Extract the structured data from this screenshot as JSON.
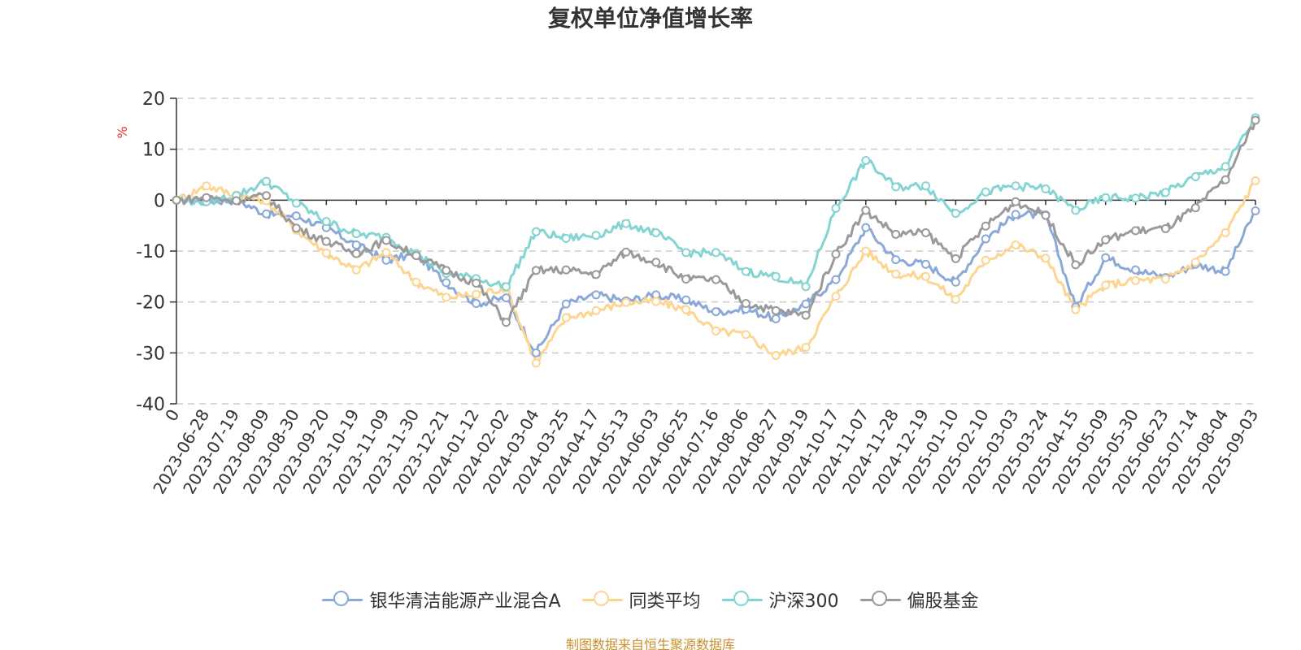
{
  "chart_data": {
    "type": "line",
    "title": "复权单位净值增长率",
    "ylabel": "%",
    "ylim": [
      -40,
      20
    ],
    "yticks": [
      20,
      10,
      0,
      -10,
      -20,
      -30,
      -40
    ],
    "x_tick_labels": [
      "0",
      "2023-06-28",
      "2023-07-19",
      "2023-08-09",
      "2023-08-30",
      "2023-09-20",
      "2023-10-19",
      "2023-11-09",
      "2023-11-30",
      "2023-12-21",
      "2024-01-12",
      "2024-02-02",
      "2024-03-04",
      "2024-03-25",
      "2024-04-17",
      "2024-05-13",
      "2024-06-03",
      "2024-06-25",
      "2024-07-16",
      "2024-08-06",
      "2024-08-27",
      "2024-09-19",
      "2024-10-17",
      "2024-11-07",
      "2024-11-28",
      "2024-12-19",
      "2025-01-10",
      "2025-02-10",
      "2025-03-03",
      "2025-03-24",
      "2025-04-15",
      "2025-05-09",
      "2025-05-30",
      "2025-06-23",
      "2025-07-14",
      "2025-08-04",
      "2025-09-03"
    ],
    "grid": "dashed horizontal",
    "legend_position": "bottom-center",
    "series": [
      {
        "name": "银华清洁能源产业混合A",
        "color": "#8aa8d8",
        "values": [
          0,
          -0.3,
          0,
          -2.7,
          -3.1,
          -5.4,
          -8.8,
          -11.8,
          -10.6,
          -16.2,
          -20.3,
          -19.2,
          -30.0,
          -20.4,
          -18.6,
          -19.8,
          -18.6,
          -19.6,
          -21.9,
          -21.4,
          -23.3,
          -20.4,
          -15.6,
          -5.4,
          -11.7,
          -12.6,
          -16.1,
          -7.6,
          -2.8,
          -2.9,
          -21.0,
          -11.3,
          -13.7,
          -15.2,
          -12.6,
          -14.0,
          -2.1
        ]
      },
      {
        "name": "同类平均",
        "color": "#fdd590",
        "values": [
          0,
          2.8,
          1.0,
          -0.1,
          -5.9,
          -10.4,
          -13.7,
          -10.3,
          -16.1,
          -19.1,
          -18.5,
          -17.2,
          -32.0,
          -23.1,
          -21.7,
          -20.1,
          -19.9,
          -21.5,
          -25.7,
          -26.4,
          -30.5,
          -28.9,
          -18.9,
          -10.0,
          -14.5,
          -15.0,
          -19.5,
          -11.8,
          -8.8,
          -11.4,
          -21.5,
          -16.7,
          -15.8,
          -15.5,
          -12.2,
          -6.4,
          3.8
        ]
      },
      {
        "name": "沪深300",
        "color": "#83d4d2",
        "values": [
          0,
          -0.3,
          0.9,
          3.7,
          -0.6,
          -4.2,
          -6.6,
          -7.3,
          -10.5,
          -14.4,
          -15.4,
          -17.0,
          -6.2,
          -7.5,
          -6.9,
          -4.6,
          -6.4,
          -10.3,
          -10.3,
          -14.0,
          -15.0,
          -17.0,
          -1.6,
          7.8,
          2.6,
          2.8,
          -2.6,
          1.6,
          2.8,
          2.2,
          -2.0,
          0.5,
          0.4,
          1.5,
          4.6,
          6.6,
          16.2
        ]
      },
      {
        "name": "偏股基金",
        "color": "#9a9a9a",
        "values": [
          0,
          0.5,
          -0.1,
          0.9,
          -5.5,
          -8.1,
          -10.5,
          -7.9,
          -10.9,
          -13.8,
          -16.3,
          -24.0,
          -13.8,
          -13.7,
          -14.6,
          -10.2,
          -12.2,
          -15.5,
          -15.6,
          -20.3,
          -21.7,
          -22.6,
          -10.6,
          -2.0,
          -6.7,
          -6.4,
          -11.5,
          -5.1,
          -0.3,
          -3.0,
          -12.7,
          -7.8,
          -6.0,
          -5.6,
          -1.5,
          4.0,
          15.7
        ]
      }
    ]
  },
  "source_note": "制图数据来自恒生聚源数据库"
}
